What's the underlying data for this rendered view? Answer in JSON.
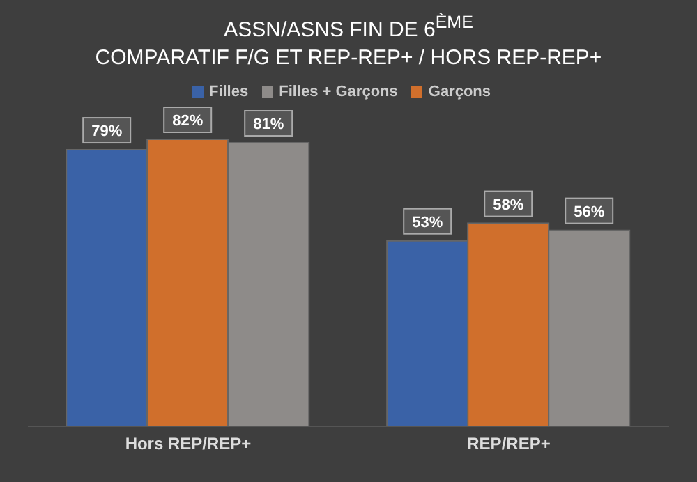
{
  "chart_data": {
    "type": "bar",
    "title": "ASSN/ASNS FIN DE 6$^{ÈME}$",
    "subtitle": "COMPARATIF F/G ET REP-REP+ / HORS REP-REP+",
    "categories": [
      "Hors REP/REP+",
      "REP/REP+"
    ],
    "series": [
      {
        "name": "Filles",
        "color": "#3a62a7",
        "values": [
          79,
          53
        ],
        "value_labels": [
          "79%",
          "53%"
        ]
      },
      {
        "name": "Garçons",
        "color": "#d06f2c",
        "values": [
          82,
          58
        ],
        "value_labels": [
          "82%",
          "58%"
        ]
      },
      {
        "name": "Filles + Garçons",
        "color": "#8e8b89",
        "values": [
          81,
          56
        ],
        "value_labels": [
          "81%",
          "56%"
        ]
      }
    ],
    "legend": "top",
    "tick_labels": "x",
    "grid": false
  }
}
